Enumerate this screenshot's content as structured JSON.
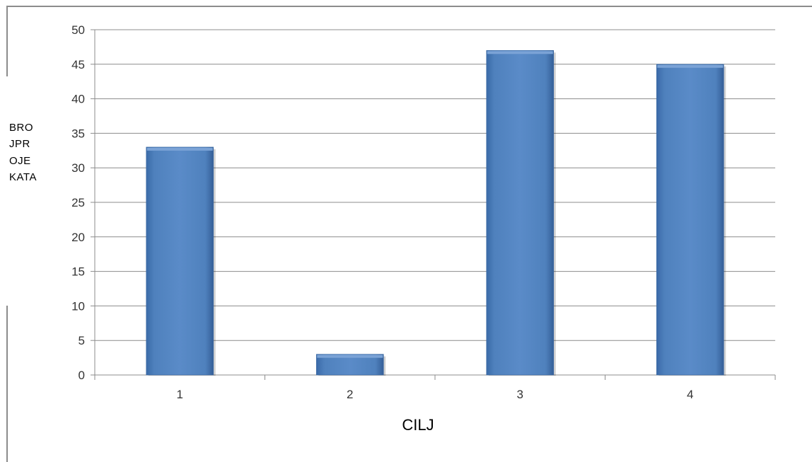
{
  "chart_data": {
    "type": "bar",
    "categories": [
      "1",
      "2",
      "3",
      "4"
    ],
    "values": [
      33,
      3,
      47,
      45
    ],
    "title": "",
    "xlabel": "CILJ",
    "ylabel": "BROJPROJEKATA",
    "ylim": [
      0,
      50
    ],
    "yticks": [
      0,
      5,
      10,
      15,
      20,
      25,
      30,
      35,
      40,
      45,
      50
    ],
    "grid": true,
    "legend": "none",
    "colors": {
      "bar": "#4f81bd",
      "bar_top": "#7ba3d6",
      "grid": "#8c8c8c"
    }
  }
}
